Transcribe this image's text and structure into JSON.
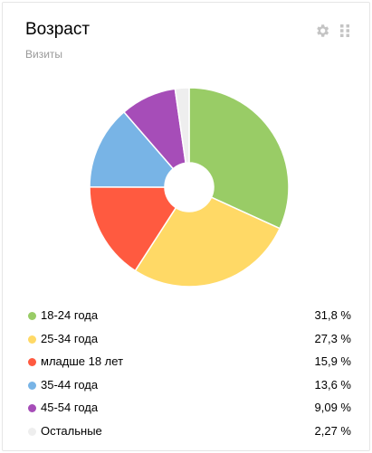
{
  "widget": {
    "title": "Возраст",
    "subtitle": "Визиты",
    "settings_icon": "gear-icon",
    "drag_icon": "drag-handle-icon"
  },
  "legend": [
    {
      "label": "18-24 года",
      "value": "31,8 %",
      "color": "#99cc66"
    },
    {
      "label": "25-34 года",
      "value": "27,3 %",
      "color": "#ffd966"
    },
    {
      "label": "младше 18 лет",
      "value": "15,9 %",
      "color": "#ff5a40"
    },
    {
      "label": "35-44 года",
      "value": "13,6 %",
      "color": "#78b4e6"
    },
    {
      "label": "45-54 года",
      "value": "9,09 %",
      "color": "#a64db8"
    },
    {
      "label": "Остальные",
      "value": "2,27 %",
      "color": "#eeeeee"
    }
  ],
  "chart_data": {
    "type": "pie",
    "categories": [
      "18-24 года",
      "25-34 года",
      "младше 18 лет",
      "35-44 года",
      "45-54 года",
      "Остальные"
    ],
    "values": [
      31.8,
      27.3,
      15.9,
      13.6,
      9.09,
      2.27
    ],
    "colors": [
      "#99cc66",
      "#ffd966",
      "#ff5a40",
      "#78b4e6",
      "#a64db8",
      "#eeeeee"
    ],
    "donut": true
  }
}
